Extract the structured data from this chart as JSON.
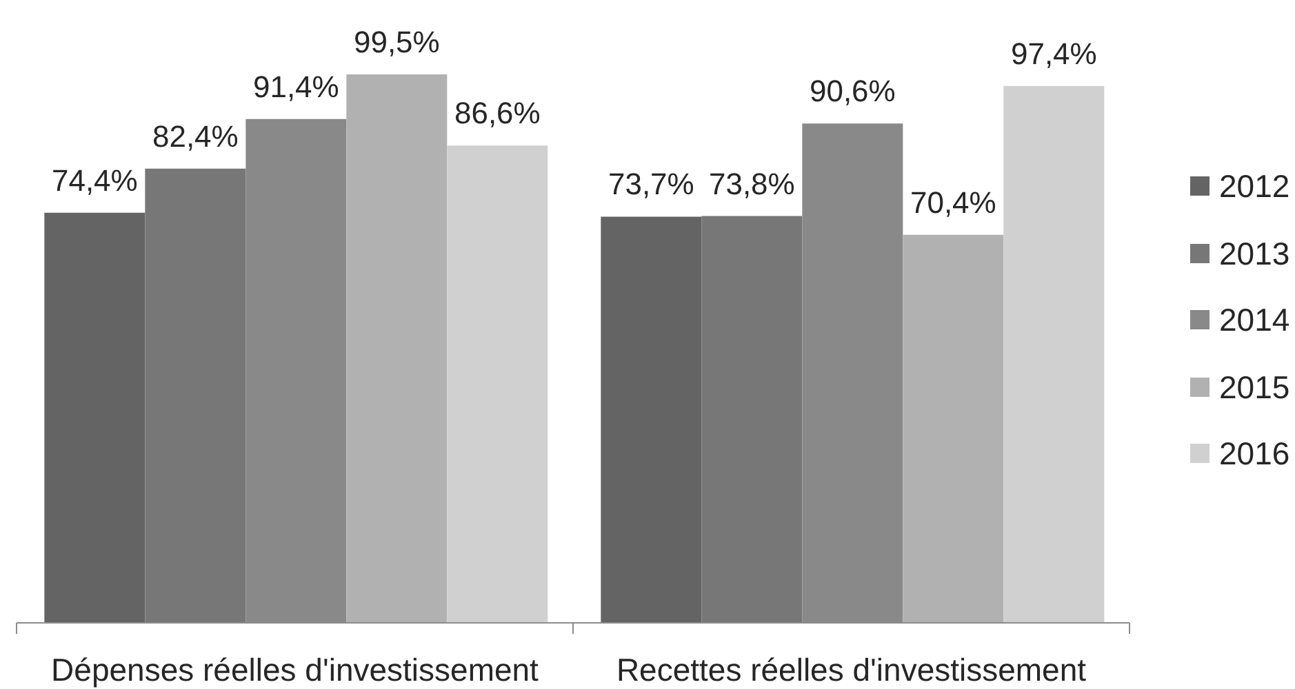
{
  "chart_data": {
    "type": "bar",
    "categories": [
      "Dépenses réelles d'investissement",
      "Recettes réelles d'investissement"
    ],
    "series": [
      {
        "name": "2012",
        "color": "#646464",
        "values": [
          74.4,
          73.7
        ],
        "value_labels": [
          "74,4%",
          "73,7%"
        ]
      },
      {
        "name": "2013",
        "color": "#777777",
        "values": [
          82.4,
          73.8
        ],
        "value_labels": [
          "82,4%",
          "73,8%"
        ]
      },
      {
        "name": "2014",
        "color": "#898989",
        "values": [
          91.4,
          90.6
        ],
        "value_labels": [
          "91,4%",
          "90,6%"
        ]
      },
      {
        "name": "2015",
        "color": "#b1b1b1",
        "values": [
          99.5,
          70.4
        ],
        "value_labels": [
          "99,5%",
          "70,4%"
        ]
      },
      {
        "name": "2016",
        "color": "#d0d0d0",
        "values": [
          86.6,
          97.4
        ],
        "value_labels": [
          "86,6%",
          "97,4%"
        ]
      }
    ],
    "legend": "right",
    "tick_labels": "x"
  }
}
